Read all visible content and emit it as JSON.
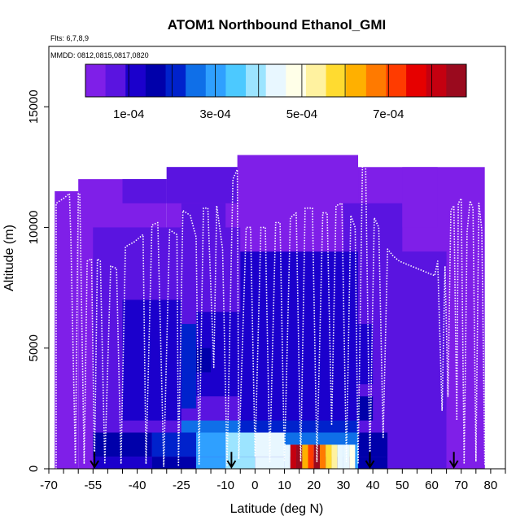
{
  "chart_data": {
    "type": "heatmap",
    "title": "ATOM1 Northbound Ethanol_GMI",
    "subtitle_flights": "Flts: 6,7,8,9",
    "subtitle_dates": "MMDD: 0812,0815,0817,0820",
    "xlabel": "Latitude (deg N)",
    "ylabel": "Altitude (m)",
    "xlim": [
      -70,
      85
    ],
    "ylim": [
      0,
      17500
    ],
    "x_ticks": [
      -70,
      -55,
      -40,
      -25,
      -10,
      0,
      10,
      20,
      30,
      40,
      50,
      60,
      70,
      80
    ],
    "x_tick_labels": [
      "-70",
      "-55",
      "-40",
      "-25",
      "-10",
      "0",
      "10",
      "20",
      "30",
      "40",
      "50",
      "60",
      "70",
      "80"
    ],
    "x_minor_ticks": [
      -65,
      -60,
      -50,
      -45,
      -35,
      -30,
      -20,
      -15,
      -5,
      5,
      15,
      25,
      35,
      45,
      55,
      65,
      75,
      85
    ],
    "y_ticks": [
      0,
      5000,
      10000,
      15000
    ],
    "y_tick_labels": [
      "0",
      "5000",
      "10000",
      "15000"
    ],
    "colorbar": {
      "colors": [
        "#7F1FE8",
        "#5A14E0",
        "#1B00CC",
        "#0000AA",
        "#0022CC",
        "#0F6FE8",
        "#2FA0FF",
        "#4CC9FF",
        "#9CE4FF",
        "#E8F7FF",
        "#FFFFE8",
        "#FFF2A0",
        "#FFDB30",
        "#FFB000",
        "#FF7A00",
        "#FF3B00",
        "#E60000",
        "#C40010",
        "#9A0A1E"
      ],
      "range": [
        0,
        0.00088
      ],
      "tick_values": [
        0.0001,
        0.0003,
        0.0005,
        0.0007
      ],
      "tick_labels": [
        "1e-04",
        "3e-04",
        "5e-04",
        "7e-04"
      ],
      "dividers": [
        0.0001,
        0.0002,
        0.0003,
        0.0004,
        0.0005,
        0.0006,
        0.0007,
        0.0008
      ]
    },
    "ceiling_segments": [
      {
        "x0": -68,
        "x1": -60,
        "top": 11500
      },
      {
        "x0": -60,
        "x1": -30,
        "top": 12000
      },
      {
        "x0": -30,
        "x1": -6,
        "top": 12500
      },
      {
        "x0": -6,
        "x1": 78,
        "top": 12500
      },
      {
        "x0": -6,
        "x1": 35,
        "top": 13000
      }
    ],
    "background_value": 2e-05,
    "value_patches": [
      {
        "x0": -30,
        "x1": -6,
        "y0": 11000,
        "y1": 12500,
        "v": 8e-05
      },
      {
        "x0": -45,
        "x1": -30,
        "y0": 11000,
        "y1": 12000,
        "v": 5e-05
      },
      {
        "x0": -25,
        "x1": -10,
        "y0": 9500,
        "y1": 11000,
        "v": 5e-05
      },
      {
        "x0": 30,
        "x1": 50,
        "y0": 9000,
        "y1": 11000,
        "v": 5e-05
      },
      {
        "x0": 50,
        "x1": 62,
        "y0": 10000,
        "y1": 12500,
        "v": 4e-05
      },
      {
        "x0": -55,
        "x1": -5,
        "y0": 0,
        "y1": 10000,
        "v": 9e-05
      },
      {
        "x0": -5,
        "x1": 35,
        "y0": 0,
        "y1": 9000,
        "v": 0.00011
      },
      {
        "x0": 35,
        "x1": 65,
        "y0": 0,
        "y1": 9000,
        "v": 7e-05
      },
      {
        "x0": -45,
        "x1": -25,
        "y0": 2000,
        "y1": 7000,
        "v": 0.00013
      },
      {
        "x0": -20,
        "x1": -5,
        "y0": 3000,
        "y1": 6500,
        "v": 0.00012
      },
      {
        "x0": 0,
        "x1": 20,
        "y0": 4000,
        "y1": 7500,
        "v": 0.00012
      },
      {
        "x0": 30,
        "x1": 40,
        "y0": 3500,
        "y1": 6000,
        "v": 0.00012
      },
      {
        "x0": -25,
        "x1": -20,
        "y0": 2500,
        "y1": 6000,
        "v": 0.0002
      },
      {
        "x0": -20,
        "x1": -15,
        "y0": 4000,
        "y1": 5000,
        "v": 0.00018
      },
      {
        "x0": 35,
        "x1": 40,
        "y0": 2000,
        "y1": 3000,
        "v": 0.00018
      },
      {
        "x0": -25,
        "x1": -5,
        "y0": 1500,
        "y1": 2000,
        "v": 0.00025
      },
      {
        "x0": -5,
        "x1": 10,
        "y0": 1500,
        "y1": 2000,
        "v": 0.00022
      },
      {
        "x0": 10,
        "x1": 35,
        "y0": 1500,
        "y1": 2000,
        "v": 0.00022
      },
      {
        "x0": -55,
        "x1": -35,
        "y0": 500,
        "y1": 1500,
        "v": 0.00015
      },
      {
        "x0": -35,
        "x1": -20,
        "y0": 500,
        "y1": 1500,
        "v": 0.00022
      },
      {
        "x0": -20,
        "x1": -10,
        "y0": 500,
        "y1": 1500,
        "v": 0.00032
      },
      {
        "x0": -10,
        "x1": 0,
        "y0": 500,
        "y1": 1500,
        "v": 0.00041
      },
      {
        "x0": 0,
        "x1": 10,
        "y0": 500,
        "y1": 1500,
        "v": 0.00045
      },
      {
        "x0": 10,
        "x1": 35,
        "y0": 500,
        "y1": 1500,
        "v": 0.0003
      },
      {
        "x0": 35,
        "x1": 45,
        "y0": 500,
        "y1": 1500,
        "v": 0.00018
      },
      {
        "x0": -55,
        "x1": -35,
        "y0": 0,
        "y1": 500,
        "v": 0.00012
      },
      {
        "x0": -35,
        "x1": -20,
        "y0": 0,
        "y1": 500,
        "v": 0.00018
      },
      {
        "x0": -20,
        "x1": -10,
        "y0": 0,
        "y1": 500,
        "v": 0.00028
      },
      {
        "x0": -10,
        "x1": 0,
        "y0": 0,
        "y1": 500,
        "v": 0.00038
      },
      {
        "x0": 0,
        "x1": 10,
        "y0": 0,
        "y1": 500,
        "v": 0.00042
      },
      {
        "x0": 35,
        "x1": 45,
        "y0": 0,
        "y1": 500,
        "v": 0.00015
      },
      {
        "x0": 45,
        "x1": 60,
        "y0": 0,
        "y1": 1500,
        "v": 9e-05
      },
      {
        "x0": 10,
        "x1": 12,
        "y0": 0,
        "y1": 1000,
        "v": 0.00045
      },
      {
        "x0": 12,
        "x1": 14,
        "y0": 0,
        "y1": 1000,
        "v": 0.0008
      },
      {
        "x0": 14,
        "x1": 16,
        "y0": 0,
        "y1": 1000,
        "v": 0.00088
      },
      {
        "x0": 16,
        "x1": 18,
        "y0": 0,
        "y1": 1000,
        "v": 0.00062
      },
      {
        "x0": 18,
        "x1": 20,
        "y0": 0,
        "y1": 1000,
        "v": 0.00072
      },
      {
        "x0": 20,
        "x1": 22,
        "y0": 0,
        "y1": 1000,
        "v": 0.00085
      },
      {
        "x0": 22,
        "x1": 24,
        "y0": 0,
        "y1": 1000,
        "v": 0.00068
      },
      {
        "x0": 24,
        "x1": 26,
        "y0": 0,
        "y1": 1000,
        "v": 0.00058
      },
      {
        "x0": 26,
        "x1": 28,
        "y0": 0,
        "y1": 1000,
        "v": 0.00052
      },
      {
        "x0": 28,
        "x1": 30,
        "y0": 0,
        "y1": 1000,
        "v": 0.00046
      },
      {
        "x0": 30,
        "x1": 32,
        "y0": 0,
        "y1": 1000,
        "v": 0.00042
      },
      {
        "x0": 32,
        "x1": 34,
        "y0": 0,
        "y1": 1000,
        "v": 0.0005
      },
      {
        "x0": 34,
        "x1": 35,
        "y0": 0,
        "y1": 1000,
        "v": 0.0003
      },
      {
        "x0": 10,
        "x1": 35,
        "y0": 1000,
        "y1": 1500,
        "v": 0.00026
      },
      {
        "x0": 65,
        "x1": 78,
        "y0": 0,
        "y1": 2500,
        "v": 4e-05
      }
    ],
    "flight_track": [
      [
        -67.5,
        0
      ],
      [
        -67.5,
        11000
      ],
      [
        -65,
        11200
      ],
      [
        -63,
        11400
      ],
      [
        -62.5,
        9500
      ],
      [
        -61,
        200
      ],
      [
        -60,
        11400
      ],
      [
        -59.5,
        11400
      ],
      [
        -58,
        200
      ],
      [
        -57,
        8600
      ],
      [
        -55.5,
        8700
      ],
      [
        -54.5,
        200
      ],
      [
        -53.5,
        8700
      ],
      [
        -52.5,
        8600
      ],
      [
        -51,
        200
      ],
      [
        -49,
        8400
      ],
      [
        -47,
        8300
      ],
      [
        -45.5,
        200
      ],
      [
        -44,
        9200
      ],
      [
        -41,
        9400
      ],
      [
        -38,
        9700
      ],
      [
        -37,
        200
      ],
      [
        -35,
        10100
      ],
      [
        -33,
        10200
      ],
      [
        -31,
        100
      ],
      [
        -29,
        9900
      ],
      [
        -26.5,
        9700
      ],
      [
        -26,
        100
      ],
      [
        -24.5,
        10700
      ],
      [
        -22,
        10500
      ],
      [
        -20,
        9600
      ],
      [
        -19,
        200
      ],
      [
        -17.5,
        10800
      ],
      [
        -16,
        10800
      ],
      [
        -14,
        4200
      ],
      [
        -13,
        10900
      ],
      [
        -11,
        9100
      ],
      [
        -9.5,
        100
      ],
      [
        -7.5,
        12000
      ],
      [
        -6,
        12400
      ],
      [
        -5.5,
        400
      ],
      [
        -3,
        10000
      ],
      [
        -1.5,
        10000
      ],
      [
        0,
        500
      ],
      [
        2,
        10000
      ],
      [
        3.5,
        10000
      ],
      [
        5,
        300
      ],
      [
        7,
        10200
      ],
      [
        8.5,
        10200
      ],
      [
        10,
        300
      ],
      [
        12,
        10400
      ],
      [
        14,
        10600
      ],
      [
        15.5,
        300
      ],
      [
        17,
        10800
      ],
      [
        19.5,
        10800
      ],
      [
        21,
        300
      ],
      [
        23,
        10600
      ],
      [
        24.5,
        10600
      ],
      [
        26,
        1800
      ],
      [
        27.5,
        10900
      ],
      [
        29.5,
        11000
      ],
      [
        31,
        300
      ],
      [
        32.5,
        10500
      ],
      [
        34,
        10000
      ],
      [
        35,
        200
      ],
      [
        36.5,
        12900
      ],
      [
        37.5,
        12900
      ],
      [
        39,
        300
      ],
      [
        40.5,
        10400
      ],
      [
        42,
        10000
      ],
      [
        43.5,
        1300
      ],
      [
        45,
        9100
      ],
      [
        47,
        8800
      ],
      [
        49,
        8600
      ],
      [
        51,
        8500
      ],
      [
        53,
        8400
      ],
      [
        55,
        8300
      ],
      [
        57,
        8200
      ],
      [
        59,
        8100
      ],
      [
        61,
        8000
      ],
      [
        62,
        8600
      ],
      [
        63.5,
        2400
      ],
      [
        64.5,
        8400
      ],
      [
        65.5,
        3000
      ],
      [
        66.5,
        10700
      ],
      [
        67.5,
        10900
      ],
      [
        68.5,
        2000
      ],
      [
        69,
        11000
      ],
      [
        70,
        11200
      ],
      [
        71,
        200
      ],
      [
        72,
        9800
      ],
      [
        73,
        11100
      ],
      [
        74,
        10800
      ],
      [
        75,
        300
      ],
      [
        76,
        11000
      ],
      [
        77,
        9900
      ],
      [
        78,
        200
      ],
      [
        79,
        7500
      ]
    ],
    "arrows_x": [
      -54.5,
      -8,
      39,
      67.5
    ]
  }
}
